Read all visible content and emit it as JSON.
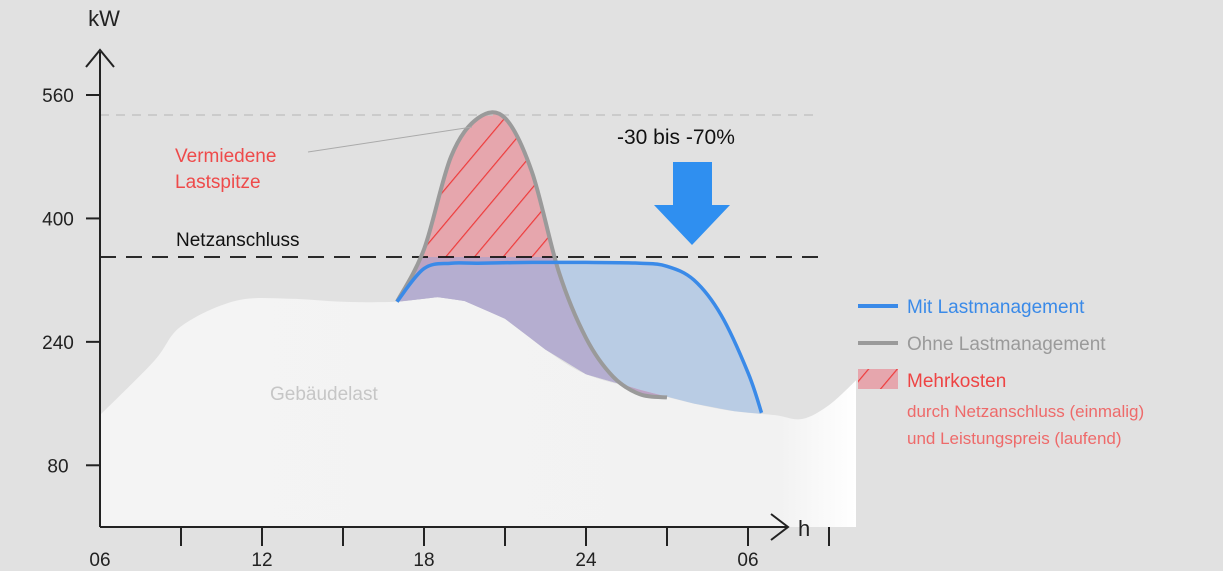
{
  "chart_data": {
    "type": "area",
    "title": "",
    "xlabel": "h",
    "ylabel": "kW",
    "xlim": [
      6,
      34
    ],
    "ylim": [
      0,
      600
    ],
    "x_ticks": [
      "06",
      "12",
      "18",
      "24",
      "06"
    ],
    "y_ticks": [
      80,
      240,
      400,
      560
    ],
    "grid": false,
    "reference_lines": [
      {
        "name": "Netzanschluss",
        "value": 350
      }
    ],
    "peak_line_value": 534,
    "series": [
      {
        "name": "Gebäudelast",
        "x": [
          6,
          8,
          9,
          11,
          13,
          15,
          17,
          18.5,
          19.5,
          21,
          22.5,
          24,
          26,
          28,
          29.5,
          31,
          32,
          33,
          34
        ],
        "y": [
          145,
          215,
          260,
          293,
          296,
          292,
          292,
          298,
          293,
          270,
          230,
          198,
          178,
          160,
          150,
          145,
          140,
          158,
          190
        ]
      },
      {
        "name": "Ohne Lastmanagement",
        "x": [
          17,
          18,
          19,
          20,
          21,
          22,
          23,
          24,
          25,
          26,
          27
        ],
        "y": [
          292,
          360,
          480,
          530,
          530,
          460,
          330,
          245,
          195,
          172,
          168
        ]
      },
      {
        "name": "Mit Lastmanagement",
        "x": [
          17,
          18,
          19,
          20,
          22,
          24,
          26,
          27,
          28,
          29,
          30,
          30.5
        ],
        "y": [
          292,
          335,
          342,
          342,
          343,
          343,
          342,
          338,
          320,
          275,
          200,
          148
        ]
      }
    ],
    "annotations": [
      {
        "text": "Vermiedene",
        "x": 23,
        "y": 480
      },
      {
        "text": "Lastspitze",
        "x": 23,
        "y": 445
      },
      {
        "text": "Gebäudelast",
        "x": 19,
        "y": 192
      },
      {
        "text": "Netzanschluss",
        "x": 23,
        "y": 370
      },
      {
        "text": "-30 bis -70%",
        "x": 29,
        "y": 500
      }
    ],
    "legend": {
      "position": "right",
      "items": [
        {
          "label": "Mit Lastmanagement",
          "color": "#3a8ae8"
        },
        {
          "label": "Ohne Lastmanagement",
          "color": "#9a9a9a"
        },
        {
          "label": "Mehrkosten",
          "color": "#ee4444",
          "detail": [
            "durch Netzanschluss (einmalig)",
            "und Leistungspreis (laufend)"
          ]
        }
      ]
    }
  },
  "colors": {
    "background": "#e1e1e1",
    "building_load": "#f4f4f4",
    "mit": "#3a8ae8",
    "ohne": "#9a9a9a",
    "mehrkosten": "#ee4444",
    "arrow": "#2f8ff0"
  }
}
